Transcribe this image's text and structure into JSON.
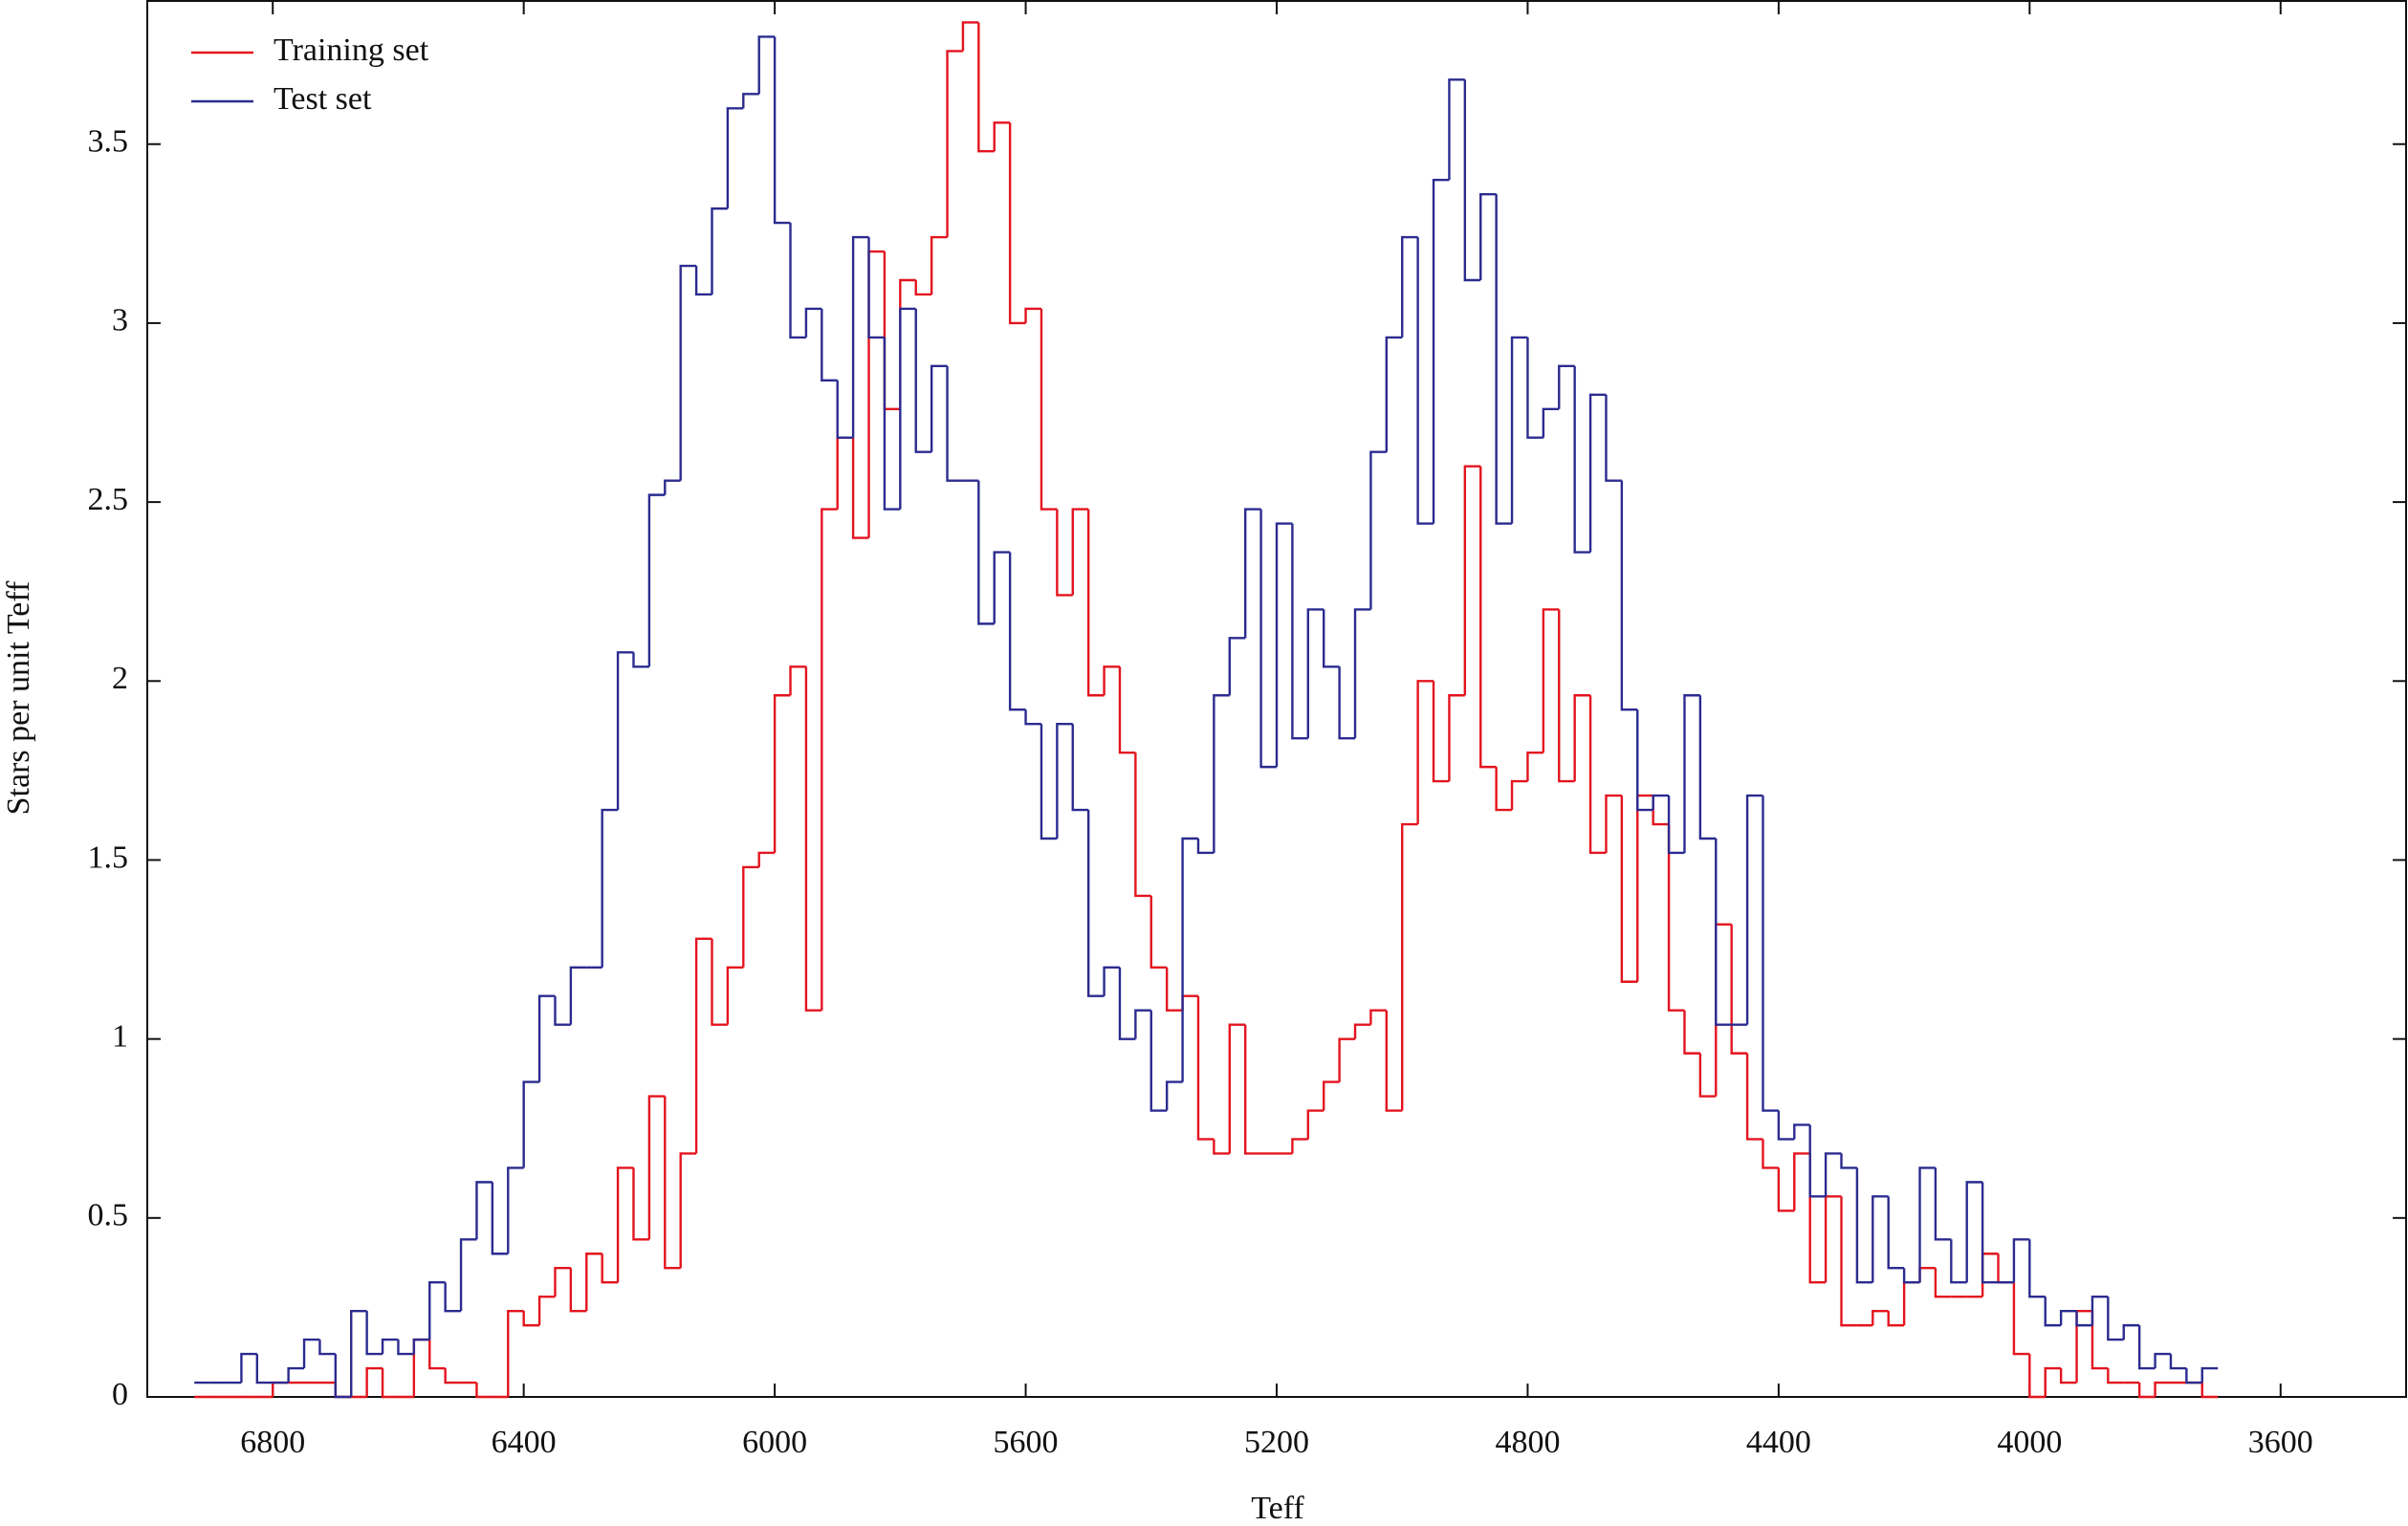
{
  "chart_data": {
    "type": "histogram",
    "x_label": "Teff",
    "y_label": "Stars per unit Teff",
    "xlim": [
      7000,
      3400
    ],
    "ylim": [
      0,
      3.9
    ],
    "xticks": [
      6800,
      6400,
      6000,
      5600,
      5200,
      4800,
      4400,
      4000,
      3600
    ],
    "yticks": [
      0,
      0.5,
      1,
      1.5,
      2,
      2.5,
      3,
      3.5
    ],
    "legend": "upper left",
    "grid": false,
    "bins": [
      6925,
      6900,
      6875,
      6850,
      6825,
      6800,
      6775,
      6750,
      6725,
      6700,
      6675,
      6650,
      6625,
      6600,
      6575,
      6550,
      6525,
      6500,
      6475,
      6450,
      6425,
      6400,
      6375,
      6350,
      6325,
      6300,
      6275,
      6250,
      6225,
      6200,
      6175,
      6150,
      6125,
      6100,
      6075,
      6050,
      6025,
      6000,
      5975,
      5950,
      5925,
      5900,
      5875,
      5850,
      5825,
      5800,
      5775,
      5750,
      5725,
      5700,
      5675,
      5650,
      5625,
      5600,
      5575,
      5550,
      5525,
      5500,
      5475,
      5450,
      5425,
      5400,
      5375,
      5350,
      5325,
      5300,
      5275,
      5250,
      5225,
      5200,
      5175,
      5150,
      5125,
      5100,
      5075,
      5050,
      5025,
      5000,
      4975,
      4950,
      4925,
      4900,
      4875,
      4850,
      4825,
      4800,
      4775,
      4750,
      4725,
      4700,
      4675,
      4650,
      4625,
      4600,
      4575,
      4550,
      4525,
      4500,
      4475,
      4450,
      4425,
      4400,
      4375,
      4350,
      4325,
      4300,
      4275,
      4250,
      4225,
      4200,
      4175,
      4150,
      4125,
      4100,
      4075,
      4050,
      4025,
      4000,
      3975,
      3950,
      3925,
      3900,
      3875,
      3850,
      3825,
      3800,
      3775,
      3750,
      3725,
      3700
    ],
    "series": [
      {
        "name": "Training set",
        "color": "#e3141e",
        "values": [
          0,
          0,
          0,
          0,
          0,
          0.04,
          0.04,
          0.04,
          0.04,
          0,
          0,
          0.08,
          0,
          0,
          0.16,
          0.08,
          0.04,
          0.04,
          0,
          0,
          0.24,
          0.2,
          0.28,
          0.36,
          0.24,
          0.4,
          0.32,
          0.64,
          0.44,
          0.84,
          0.36,
          0.68,
          1.28,
          1.04,
          1.2,
          1.48,
          1.52,
          1.96,
          2.04,
          1.08,
          2.48,
          2.68,
          2.4,
          3.2,
          2.76,
          3.12,
          3.08,
          3.24,
          3.76,
          3.84,
          3.48,
          3.56,
          3.0,
          3.04,
          2.48,
          2.24,
          2.48,
          1.96,
          2.04,
          1.8,
          1.4,
          1.2,
          1.08,
          1.12,
          0.72,
          0.68,
          1.04,
          0.68,
          0.68,
          0.68,
          0.72,
          0.8,
          0.88,
          1.0,
          1.04,
          1.08,
          0.8,
          1.6,
          2.0,
          1.72,
          1.96,
          2.6,
          1.76,
          1.64,
          1.72,
          1.8,
          2.2,
          1.72,
          1.96,
          1.52,
          1.68,
          1.16,
          1.68,
          1.6,
          1.08,
          0.96,
          0.84,
          1.32,
          0.96,
          0.72,
          0.64,
          0.52,
          0.68,
          0.32,
          0.56,
          0.2,
          0.2,
          0.24,
          0.2,
          0.32,
          0.36,
          0.28,
          0.28,
          0.28,
          0.4,
          0.32,
          0.12,
          0,
          0.08,
          0.04,
          0.24,
          0.08,
          0.04,
          0.04,
          0,
          0.04,
          0.04,
          0.04,
          0
        ]
      },
      {
        "name": "Test set",
        "color": "#2b2b90",
        "values": [
          0.04,
          0.04,
          0.04,
          0.12,
          0.04,
          0.04,
          0.08,
          0.16,
          0.12,
          0,
          0.24,
          0.12,
          0.16,
          0.12,
          0.16,
          0.32,
          0.24,
          0.44,
          0.6,
          0.4,
          0.64,
          0.88,
          1.12,
          1.04,
          1.2,
          1.2,
          1.64,
          2.08,
          2.04,
          2.52,
          2.56,
          3.16,
          3.08,
          3.32,
          3.6,
          3.64,
          3.8,
          3.28,
          2.96,
          3.04,
          2.84,
          2.68,
          3.24,
          2.96,
          2.48,
          3.04,
          2.64,
          2.88,
          2.56,
          2.56,
          2.16,
          2.36,
          1.92,
          1.88,
          1.56,
          1.88,
          1.64,
          1.12,
          1.2,
          1.0,
          1.08,
          0.8,
          0.88,
          1.56,
          1.52,
          1.96,
          2.12,
          2.48,
          1.76,
          2.44,
          1.84,
          2.2,
          2.04,
          1.84,
          2.2,
          2.64,
          2.96,
          3.24,
          2.44,
          3.4,
          3.68,
          3.12,
          3.36,
          2.44,
          2.96,
          2.68,
          2.76,
          2.88,
          2.36,
          2.8,
          2.56,
          1.92,
          1.64,
          1.68,
          1.52,
          1.96,
          1.56,
          1.04,
          1.04,
          1.68,
          0.8,
          0.72,
          0.76,
          0.56,
          0.68,
          0.64,
          0.32,
          0.56,
          0.36,
          0.32,
          0.64,
          0.44,
          0.32,
          0.6,
          0.32,
          0.32,
          0.44,
          0.28,
          0.2,
          0.24,
          0.2,
          0.28,
          0.16,
          0.2,
          0.08,
          0.12,
          0.08,
          0.04,
          0.08
        ]
      }
    ]
  }
}
